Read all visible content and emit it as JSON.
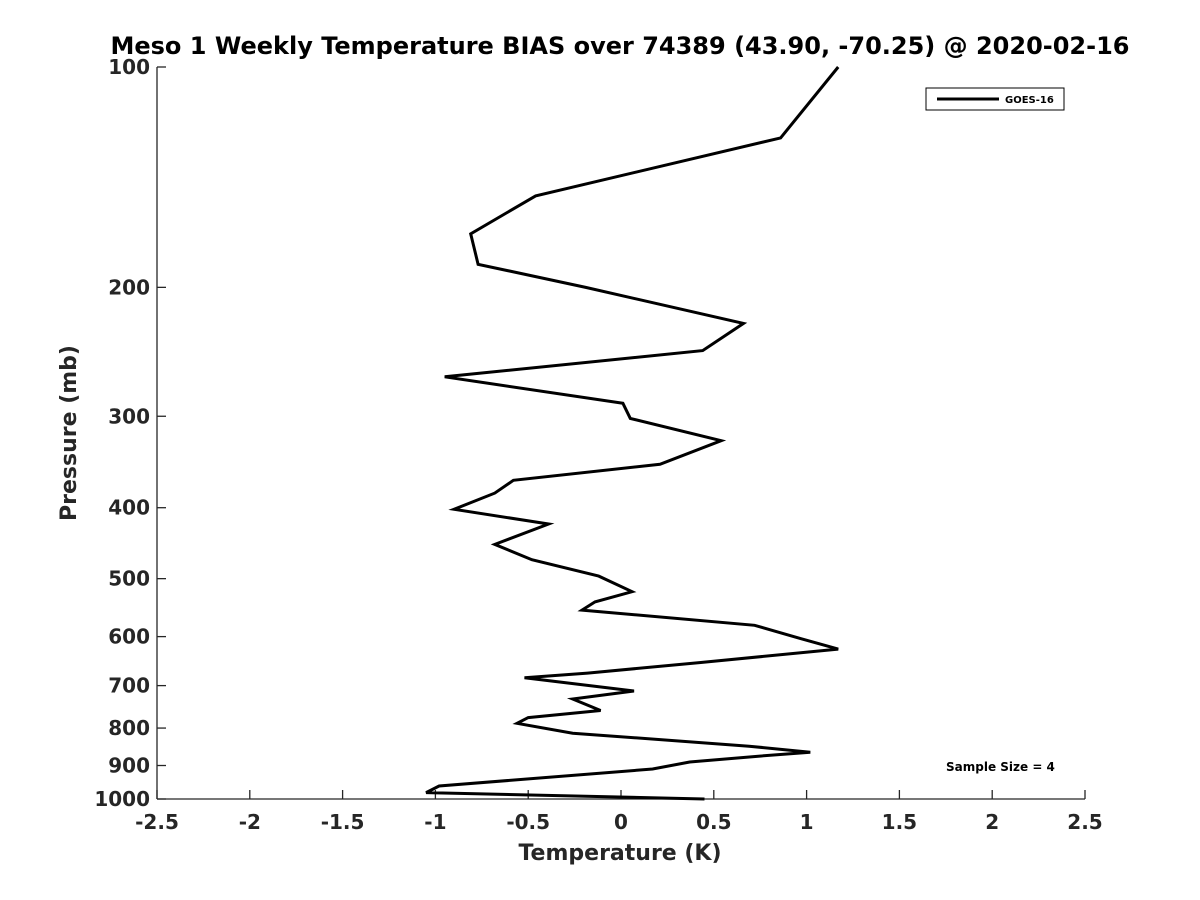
{
  "chart_data": {
    "type": "line",
    "title": "Meso 1 Weekly Temperature BIAS over 74389 (43.90, -70.25) @ 2020-02-16",
    "xlabel": "Temperature (K)",
    "ylabel": "Pressure (mb)",
    "xlim": [
      -2.5,
      2.5
    ],
    "ylim": [
      100,
      1000
    ],
    "y_scale": "log",
    "y_reversed": true,
    "grid": false,
    "legend_position": "top-right",
    "x_ticks": [
      -2.5,
      -2,
      -1.5,
      -1,
      -0.5,
      0,
      0.5,
      1,
      1.5,
      2,
      2.5
    ],
    "x_tick_labels": [
      "-2.5",
      "-2",
      "-1.5",
      "-1",
      "-0.5",
      "0",
      "0.5",
      "1",
      "1.5",
      "2",
      "2.5"
    ],
    "y_ticks": [
      100,
      200,
      300,
      400,
      500,
      600,
      700,
      800,
      900,
      1000
    ],
    "y_tick_labels": [
      "100",
      "200",
      "300",
      "400",
      "500",
      "600",
      "700",
      "800",
      "900",
      "1000"
    ],
    "series": [
      {
        "name": "GOES-16",
        "color": "#000000",
        "points": [
          [
            1.17,
            100
          ],
          [
            0.86,
            125
          ],
          [
            -0.46,
            150
          ],
          [
            -0.81,
            169
          ],
          [
            -0.77,
            186
          ],
          [
            -0.19,
            200
          ],
          [
            0.66,
            224
          ],
          [
            0.44,
            244
          ],
          [
            -0.95,
            265
          ],
          [
            0.01,
            288
          ],
          [
            0.05,
            302
          ],
          [
            0.54,
            324
          ],
          [
            0.21,
            349
          ],
          [
            -0.58,
            367
          ],
          [
            -0.68,
            382
          ],
          [
            -0.9,
            402
          ],
          [
            -0.39,
            421
          ],
          [
            -0.68,
            449
          ],
          [
            -0.48,
            471
          ],
          [
            -0.12,
            496
          ],
          [
            0.06,
            521
          ],
          [
            -0.14,
            538
          ],
          [
            -0.21,
            552
          ],
          [
            0.72,
            579
          ],
          [
            0.97,
            604
          ],
          [
            1.17,
            624
          ],
          [
            0.43,
            651
          ],
          [
            -0.18,
            673
          ],
          [
            -0.52,
            683
          ],
          [
            0.07,
            712
          ],
          [
            -0.26,
            730
          ],
          [
            -0.11,
            757
          ],
          [
            -0.5,
            774
          ],
          [
            -0.56,
            788
          ],
          [
            -0.26,
            813
          ],
          [
            0.69,
            847
          ],
          [
            1.02,
            863
          ],
          [
            0.74,
            874
          ],
          [
            0.37,
            890
          ],
          [
            0.17,
            910
          ],
          [
            -0.98,
            960
          ],
          [
            -1.05,
            980
          ],
          [
            0.45,
            1000
          ]
        ]
      }
    ],
    "annotations": [
      {
        "text": "Sample Size = 4"
      }
    ]
  }
}
